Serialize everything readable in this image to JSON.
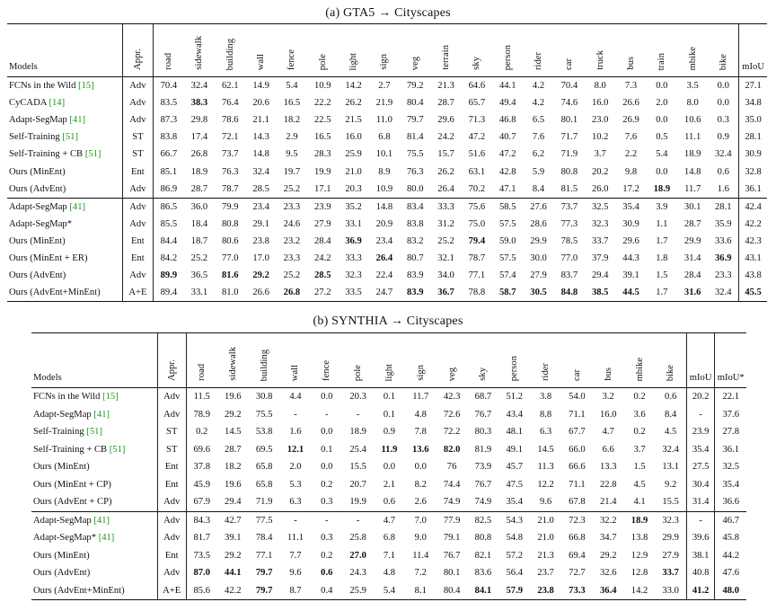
{
  "caption_a": "(a) GTA5 → Cityscapes",
  "caption_b": "(b) SYNTHIA → Cityscapes",
  "table_a": {
    "header_models": "Models",
    "header_appr": "Appr.",
    "class_headers": [
      "road",
      "sidewalk",
      "building",
      "wall",
      "fence",
      "pole",
      "light",
      "sign",
      "veg",
      "terrain",
      "sky",
      "person",
      "rider",
      "car",
      "truck",
      "bus",
      "train",
      "mbike",
      "bike"
    ],
    "header_miou": "mIoU",
    "groups": [
      [
        {
          "name": "FCNs in the Wild",
          "ref": "[15]",
          "appr": "Adv",
          "values": [
            "70.4",
            "32.4",
            "62.1",
            "14.9",
            "5.4",
            "10.9",
            "14.2",
            "2.7",
            "79.2",
            "21.3",
            "64.6",
            "44.1",
            "4.2",
            "70.4",
            "8.0",
            "7.3",
            "0.0",
            "3.5",
            "0.0"
          ],
          "miou": "27.1",
          "bold": []
        },
        {
          "name": "CyCADA",
          "ref": "[14]",
          "appr": "Adv",
          "values": [
            "83.5",
            "38.3",
            "76.4",
            "20.6",
            "16.5",
            "22.2",
            "26.2",
            "21.9",
            "80.4",
            "28.7",
            "65.7",
            "49.4",
            "4.2",
            "74.6",
            "16.0",
            "26.6",
            "2.0",
            "8.0",
            "0.0"
          ],
          "miou": "34.8",
          "bold": [
            1
          ]
        },
        {
          "name": "Adapt-SegMap",
          "ref": "[41]",
          "appr": "Adv",
          "values": [
            "87.3",
            "29.8",
            "78.6",
            "21.1",
            "18.2",
            "22.5",
            "21.5",
            "11.0",
            "79.7",
            "29.6",
            "71.3",
            "46.8",
            "6.5",
            "80.1",
            "23.0",
            "26.9",
            "0.0",
            "10.6",
            "0.3"
          ],
          "miou": "35.0",
          "bold": []
        },
        {
          "name": "Self-Training",
          "ref": "[51]",
          "appr": "ST",
          "values": [
            "83.8",
            "17.4",
            "72.1",
            "14.3",
            "2.9",
            "16.5",
            "16.0",
            "6.8",
            "81.4",
            "24.2",
            "47.2",
            "40.7",
            "7.6",
            "71.7",
            "10.2",
            "7.6",
            "0.5",
            "11.1",
            "0.9"
          ],
          "miou": "28.1",
          "bold": []
        },
        {
          "name": "Self-Training + CB",
          "ref": "[51]",
          "appr": "ST",
          "values": [
            "66.7",
            "26.8",
            "73.7",
            "14.8",
            "9.5",
            "28.3",
            "25.9",
            "10.1",
            "75.5",
            "15.7",
            "51.6",
            "47.2",
            "6.2",
            "71.9",
            "3.7",
            "2.2",
            "5.4",
            "18.9",
            "32.4"
          ],
          "miou": "30.9",
          "bold": []
        },
        {
          "name": "Ours (MinEnt)",
          "ref": "",
          "appr": "Ent",
          "values": [
            "85.1",
            "18.9",
            "76.3",
            "32.4",
            "19.7",
            "19.9",
            "21.0",
            "8.9",
            "76.3",
            "26.2",
            "63.1",
            "42.8",
            "5.9",
            "80.8",
            "20.2",
            "9.8",
            "0.0",
            "14.8",
            "0.6"
          ],
          "miou": "32.8",
          "bold": []
        },
        {
          "name": "Ours (AdvEnt)",
          "ref": "",
          "appr": "Adv",
          "values": [
            "86.9",
            "28.7",
            "78.7",
            "28.5",
            "25.2",
            "17.1",
            "20.3",
            "10.9",
            "80.0",
            "26.4",
            "70.2",
            "47.1",
            "8.4",
            "81.5",
            "26.0",
            "17.2",
            "18.9",
            "11.7",
            "1.6"
          ],
          "miou": "36.1",
          "bold": [
            16
          ]
        }
      ],
      [
        {
          "name": "Adapt-SegMap",
          "ref": "[41]",
          "appr": "Adv",
          "values": [
            "86.5",
            "36.0",
            "79.9",
            "23.4",
            "23.3",
            "23.9",
            "35.2",
            "14.8",
            "83.4",
            "33.3",
            "75.6",
            "58.5",
            "27.6",
            "73.7",
            "32.5",
            "35.4",
            "3.9",
            "30.1",
            "28.1"
          ],
          "miou": "42.4",
          "bold": []
        },
        {
          "name": "Adapt-SegMap*",
          "ref": "",
          "appr": "Adv",
          "values": [
            "85.5",
            "18.4",
            "80.8",
            "29.1",
            "24.6",
            "27.9",
            "33.1",
            "20.9",
            "83.8",
            "31.2",
            "75.0",
            "57.5",
            "28.6",
            "77.3",
            "32.3",
            "30.9",
            "1.1",
            "28.7",
            "35.9"
          ],
          "miou": "42.2",
          "bold": []
        },
        {
          "name": "Ours (MinEnt)",
          "ref": "",
          "appr": "Ent",
          "values": [
            "84.4",
            "18.7",
            "80.6",
            "23.8",
            "23.2",
            "28.4",
            "36.9",
            "23.4",
            "83.2",
            "25.2",
            "79.4",
            "59.0",
            "29.9",
            "78.5",
            "33.7",
            "29.6",
            "1.7",
            "29.9",
            "33.6"
          ],
          "miou": "42.3",
          "bold": [
            6,
            10
          ]
        },
        {
          "name": "Ours (MinEnt + ER)",
          "ref": "",
          "appr": "Ent",
          "values": [
            "84.2",
            "25.2",
            "77.0",
            "17.0",
            "23.3",
            "24.2",
            "33.3",
            "26.4",
            "80.7",
            "32.1",
            "78.7",
            "57.5",
            "30.0",
            "77.0",
            "37.9",
            "44.3",
            "1.8",
            "31.4",
            "36.9"
          ],
          "miou": "43.1",
          "bold": [
            7,
            18
          ]
        },
        {
          "name": "Ours (AdvEnt)",
          "ref": "",
          "appr": "Adv",
          "values": [
            "89.9",
            "36.5",
            "81.6",
            "29.2",
            "25.2",
            "28.5",
            "32.3",
            "22.4",
            "83.9",
            "34.0",
            "77.1",
            "57.4",
            "27.9",
            "83.7",
            "29.4",
            "39.1",
            "1.5",
            "28.4",
            "23.3"
          ],
          "miou": "43.8",
          "bold": [
            0,
            2,
            3,
            5
          ]
        },
        {
          "name": "Ours (AdvEnt+MinEnt)",
          "ref": "",
          "appr": "A+E",
          "values": [
            "89.4",
            "33.1",
            "81.0",
            "26.6",
            "26.8",
            "27.2",
            "33.5",
            "24.7",
            "83.9",
            "36.7",
            "78.8",
            "58.7",
            "30.5",
            "84.8",
            "38.5",
            "44.5",
            "1.7",
            "31.6",
            "32.4"
          ],
          "miou": "45.5",
          "bold": [
            4,
            8,
            9,
            11,
            12,
            13,
            14,
            15,
            17,
            19
          ]
        }
      ]
    ]
  },
  "table_b": {
    "header_models": "Models",
    "header_appr": "Appr.",
    "class_headers": [
      "road",
      "sidewalk",
      "building",
      "wall",
      "fence",
      "pole",
      "light",
      "sign",
      "veg",
      "sky",
      "person",
      "rider",
      "car",
      "bus",
      "mbike",
      "bike"
    ],
    "header_miou": "mIoU",
    "header_miou_star": "mIoU*",
    "groups": [
      [
        {
          "name": "FCNs in the Wild",
          "ref": "[15]",
          "appr": "Adv",
          "values": [
            "11.5",
            "19.6",
            "30.8",
            "4.4",
            "0.0",
            "20.3",
            "0.1",
            "11.7",
            "42.3",
            "68.7",
            "51.2",
            "3.8",
            "54.0",
            "3.2",
            "0.2",
            "0.6"
          ],
          "miou": "20.2",
          "miou_star": "22.1",
          "bold": []
        },
        {
          "name": "Adapt-SegMap",
          "ref": "[41]",
          "appr": "Adv",
          "values": [
            "78.9",
            "29.2",
            "75.5",
            "-",
            "-",
            "-",
            "0.1",
            "4.8",
            "72.6",
            "76.7",
            "43.4",
            "8.8",
            "71.1",
            "16.0",
            "3.6",
            "8.4"
          ],
          "miou": "-",
          "miou_star": "37.6",
          "bold": []
        },
        {
          "name": "Self-Training",
          "ref": "[51]",
          "appr": "ST",
          "values": [
            "0.2",
            "14.5",
            "53.8",
            "1.6",
            "0.0",
            "18.9",
            "0.9",
            "7.8",
            "72.2",
            "80.3",
            "48.1",
            "6.3",
            "67.7",
            "4.7",
            "0.2",
            "4.5"
          ],
          "miou": "23.9",
          "miou_star": "27.8",
          "bold": []
        },
        {
          "name": "Self-Training + CB",
          "ref": "[51]",
          "appr": "ST",
          "values": [
            "69.6",
            "28.7",
            "69.5",
            "12.1",
            "0.1",
            "25.4",
            "11.9",
            "13.6",
            "82.0",
            "81.9",
            "49.1",
            "14.5",
            "66.0",
            "6.6",
            "3.7",
            "32.4"
          ],
          "miou": "35.4",
          "miou_star": "36.1",
          "bold": [
            3,
            6,
            7,
            8
          ]
        },
        {
          "name": "Ours (MinEnt)",
          "ref": "",
          "appr": "Ent",
          "values": [
            "37.8",
            "18.2",
            "65.8",
            "2.0",
            "0.0",
            "15.5",
            "0.0",
            "0.0",
            "76",
            "73.9",
            "45.7",
            "11.3",
            "66.6",
            "13.3",
            "1.5",
            "13.1"
          ],
          "miou": "27.5",
          "miou_star": "32.5",
          "bold": []
        },
        {
          "name": "Ours (MinEnt + CP)",
          "ref": "",
          "appr": "Ent",
          "values": [
            "45.9",
            "19.6",
            "65.8",
            "5.3",
            "0.2",
            "20.7",
            "2.1",
            "8.2",
            "74.4",
            "76.7",
            "47.5",
            "12.2",
            "71.1",
            "22.8",
            "4.5",
            "9.2"
          ],
          "miou": "30.4",
          "miou_star": "35.4",
          "bold": []
        },
        {
          "name": "Ours (AdvEnt + CP)",
          "ref": "",
          "appr": "Adv",
          "values": [
            "67.9",
            "29.4",
            "71.9",
            "6.3",
            "0.3",
            "19.9",
            "0.6",
            "2.6",
            "74.9",
            "74.9",
            "35.4",
            "9.6",
            "67.8",
            "21.4",
            "4.1",
            "15.5"
          ],
          "miou": "31.4",
          "miou_star": "36.6",
          "bold": []
        }
      ],
      [
        {
          "name": "Adapt-SegMap",
          "ref": "[41]",
          "appr": "Adv",
          "values": [
            "84.3",
            "42.7",
            "77.5",
            "-",
            "-",
            "-",
            "4.7",
            "7.0",
            "77.9",
            "82.5",
            "54.3",
            "21.0",
            "72.3",
            "32.2",
            "18.9",
            "32.3"
          ],
          "miou": "-",
          "miou_star": "46.7",
          "bold": [
            14
          ]
        },
        {
          "name": "Adapt-SegMap*",
          "ref": "[41]",
          "appr": "Adv",
          "values": [
            "81.7",
            "39.1",
            "78.4",
            "11.1",
            "0.3",
            "25.8",
            "6.8",
            "9.0",
            "79.1",
            "80.8",
            "54.8",
            "21.0",
            "66.8",
            "34.7",
            "13.8",
            "29.9"
          ],
          "miou": "39.6",
          "miou_star": "45.8",
          "bold": []
        },
        {
          "name": "Ours (MinEnt)",
          "ref": "",
          "appr": "Ent",
          "values": [
            "73.5",
            "29.2",
            "77.1",
            "7.7",
            "0.2",
            "27.0",
            "7.1",
            "11.4",
            "76.7",
            "82.1",
            "57.2",
            "21.3",
            "69.4",
            "29.2",
            "12.9",
            "27.9"
          ],
          "miou": "38.1",
          "miou_star": "44.2",
          "bold": [
            5
          ]
        },
        {
          "name": "Ours (AdvEnt)",
          "ref": "",
          "appr": "Adv",
          "values": [
            "87.0",
            "44.1",
            "79.7",
            "9.6",
            "0.6",
            "24.3",
            "4.8",
            "7.2",
            "80.1",
            "83.6",
            "56.4",
            "23.7",
            "72.7",
            "32.6",
            "12.8",
            "33.7"
          ],
          "miou": "40.8",
          "miou_star": "47.6",
          "bold": [
            0,
            1,
            2,
            4,
            15
          ]
        },
        {
          "name": "Ours (AdvEnt+MinEnt)",
          "ref": "",
          "appr": "A+E",
          "values": [
            "85.6",
            "42.2",
            "79.7",
            "8.7",
            "0.4",
            "25.9",
            "5.4",
            "8.1",
            "80.4",
            "84.1",
            "57.9",
            "23.8",
            "73.3",
            "36.4",
            "14.2",
            "33.0"
          ],
          "miou": "41.2",
          "miou_star": "48.0",
          "bold": [
            2,
            9,
            10,
            11,
            12,
            13,
            16,
            17
          ]
        }
      ]
    ]
  }
}
